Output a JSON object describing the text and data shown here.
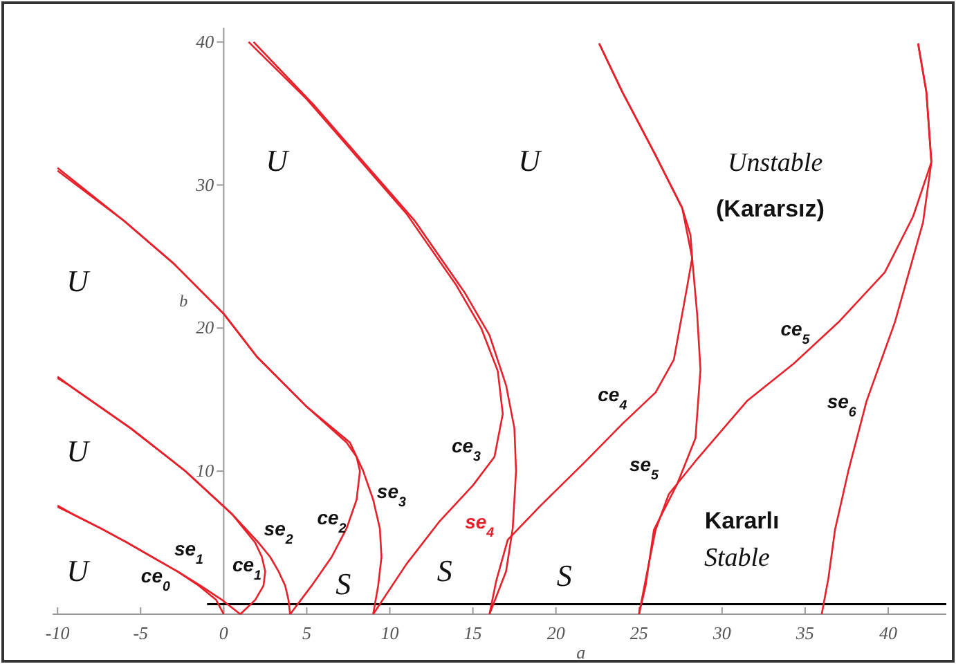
{
  "chart_data": {
    "type": "line",
    "xlabel": "a",
    "ylabel": "b",
    "xlim": [
      -10.3,
      43.5
    ],
    "ylim": [
      0,
      41
    ],
    "xticks": [
      -10,
      -5,
      0,
      5,
      10,
      15,
      20,
      25,
      30,
      35,
      40
    ],
    "yticks": [
      10,
      20,
      30,
      40
    ],
    "grid": false,
    "marker": "none",
    "line_style": "solid",
    "series": [
      {
        "name": "ce$_{0}$",
        "color": "#e8202a",
        "x": [
          0,
          -0.45,
          -1.5,
          -2.8,
          -4.3,
          -5.8,
          -7.4,
          -9.1,
          -10
        ],
        "values": [
          0,
          1,
          2,
          3,
          4,
          5,
          6,
          7,
          7.5
        ]
      },
      {
        "name": "se$_{1}$",
        "color": "#e8202a",
        "x": [
          1,
          -0.1,
          -1.4,
          -2.8,
          -4.3,
          -5.8,
          -7.4,
          -9.1,
          -10
        ],
        "values": [
          0,
          1,
          2,
          3,
          4,
          5,
          6,
          7,
          7.6
        ]
      },
      {
        "name": "ce$_{1}$",
        "color": "#e8202a",
        "x": [
          1,
          1.9,
          2.4,
          2.5,
          2.3,
          1.9,
          1.2,
          0.5,
          -2.3,
          -5.6,
          -9.3,
          -10
        ],
        "values": [
          0,
          1,
          2,
          3,
          4,
          5,
          6,
          7,
          10,
          13,
          16,
          16.5
        ]
      },
      {
        "name": "se$_{2}$",
        "color": "#e8202a",
        "x": [
          4,
          3.9,
          3.7,
          3.3,
          2.8,
          2.1,
          1.3,
          0.5,
          -2.3,
          -5.6,
          -9.3,
          -10
        ],
        "values": [
          0,
          1,
          2,
          3,
          4,
          5,
          6,
          7,
          10,
          13,
          16,
          16.6
        ]
      },
      {
        "name": "ce$_{2}$",
        "color": "#e8202a",
        "x": [
          4,
          5.3,
          6.5,
          7.4,
          8,
          8.2,
          8,
          7.4,
          5,
          2,
          0,
          -3,
          -6,
          -10
        ],
        "values": [
          0,
          2,
          4,
          6,
          8,
          10,
          11,
          12,
          14.5,
          18,
          21,
          24.5,
          27.5,
          31
        ]
      },
      {
        "name": "se$_{3}$",
        "color": "#e8202a",
        "x": [
          9,
          9.3,
          9.5,
          9.4,
          9,
          8.4,
          7.6,
          5,
          2,
          0,
          -3,
          -6,
          -10
        ],
        "values": [
          0,
          2,
          4,
          6,
          8,
          10,
          12,
          14.5,
          18,
          21,
          24.5,
          27.5,
          31.2
        ]
      },
      {
        "name": "ce$_{3}$",
        "color": "#e8202a",
        "x": [
          9,
          11,
          13,
          15,
          16.3,
          16.8,
          16.5,
          15.5,
          14,
          11,
          8,
          5,
          1.5
        ],
        "values": [
          0,
          3.5,
          6.5,
          9,
          11,
          14,
          17,
          20,
          23,
          28,
          32,
          36,
          40
        ]
      },
      {
        "name": "se$_{4}$",
        "color": "#e8202a",
        "x": [
          16,
          17,
          17.4,
          17.6,
          17.5,
          17,
          16,
          14.5,
          11.5,
          8.5,
          5.5,
          1.8
        ],
        "values": [
          0,
          3,
          6,
          10,
          13,
          16,
          19.5,
          22.5,
          27.5,
          31.5,
          35.5,
          40
        ]
      },
      {
        "name": "ce$_{4}$",
        "color": "#e8202a",
        "x": [
          16,
          16.4,
          17.1,
          19,
          21.8,
          24,
          26,
          27.1,
          27.9,
          28.2,
          28.1,
          27.6,
          25.9,
          24,
          22.6
        ],
        "values": [
          0,
          2.3,
          5.2,
          7.5,
          10.7,
          13.3,
          15.5,
          17.8,
          22.9,
          24.9,
          26.5,
          28.4,
          32.3,
          36.5,
          39.9
        ]
      },
      {
        "name": "se$_{5}$",
        "color": "#e8202a",
        "x": [
          25,
          25.4,
          25.9,
          27.3,
          28.4,
          28.7,
          28.5,
          28.2,
          27.6,
          25.9,
          24,
          22.6
        ],
        "values": [
          0,
          2,
          5.9,
          9.1,
          12.3,
          17.1,
          21,
          24.9,
          28.4,
          32.3,
          36.5,
          39.9
        ]
      },
      {
        "name": "ce$_{5}$",
        "color": "#e8202a",
        "x": [
          25,
          25.5,
          26,
          26.8,
          28.4,
          31.5,
          34.3,
          37,
          39.8,
          41.5,
          42.6,
          42.3,
          41.8
        ],
        "values": [
          0,
          3,
          5.9,
          8.4,
          10.7,
          14.9,
          17.5,
          20.4,
          23.9,
          27.8,
          31.6,
          36.5,
          39.9
        ]
      },
      {
        "name": "se$_{6}$",
        "color": "#e8202a",
        "x": [
          36,
          36.4,
          36.8,
          37.6,
          38.7,
          40.4,
          42.1,
          42.6,
          42.3,
          41.8
        ],
        "values": [
          0,
          2.5,
          5.9,
          10,
          14.9,
          20.4,
          27.4,
          31.6,
          36.5,
          39.9
        ]
      }
    ],
    "ref_lines": [
      {
        "axis": "y",
        "value": 0.7,
        "color": "#000000"
      }
    ],
    "annotations": [
      "U",
      "U",
      "U",
      "U",
      "U",
      "S",
      "S",
      "S",
      "Unstable",
      "(Kararsız)",
      "Kararlı",
      "Stable"
    ]
  }
}
